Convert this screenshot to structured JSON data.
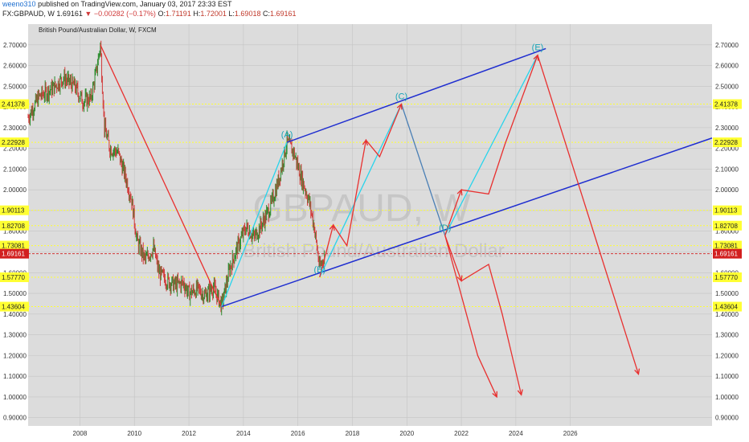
{
  "header": {
    "user": "weeno310",
    "published": "published on TradingView.com, January 03, 2017 23:33 EST",
    "symbol": "FX:GBPAUD, W",
    "last": "1.69161",
    "change": "−0.00282 (−0.17%)",
    "o_label": "O:",
    "o_value": "1.71191",
    "h_label": "H:",
    "h_value": "1.72001",
    "l_label": "L:",
    "l_value": "1.69018",
    "c_label": "C:",
    "c_value": "1.69161"
  },
  "chart_title": "British Pound/Australian Dollar, W, FXCM",
  "watermark": {
    "symbol": "GBPAUD, W",
    "name": "British Pound/Australian Dollar"
  },
  "colors": {
    "plot_bg": "#dcdcdc",
    "green": "#2e8b2e",
    "red_candle": "#d23a3a",
    "projection": "#e8302f",
    "channel": "#1f2ed0",
    "cyan": "#27d4ec",
    "level": "#ffff33",
    "label_bg": "#ffff33",
    "current_bg": "#d21f1f",
    "wave_label": "#18a5b8"
  },
  "chart_data": {
    "type": "line",
    "title": "British Pound/Australian Dollar, W, FXCM",
    "x_ticks": [
      2008,
      2010,
      2012,
      2014,
      2016,
      2018,
      2020,
      2022,
      2024,
      2026
    ],
    "y_ticks": [
      0.9,
      1.0,
      1.1,
      1.2,
      1.3,
      1.4,
      1.5,
      1.6,
      1.7,
      1.8,
      1.9,
      2.0,
      2.1,
      2.2,
      2.3,
      2.4,
      2.5,
      2.6,
      2.7
    ],
    "y_tick_labels": [
      "0.90000",
      "1.00000",
      "1.10000",
      "1.20000",
      "1.30000",
      "1.40000",
      "1.50000",
      "1.60000",
      "1.70000",
      "1.80000",
      "1.90000",
      "2.00000",
      "2.10000",
      "2.20000",
      "2.30000",
      "2.40000",
      "2.50000",
      "2.60000",
      "2.70000"
    ],
    "ylim": [
      0.86,
      2.8
    ],
    "xlim": [
      2006.1,
      2031.2
    ],
    "price_series": [
      [
        2006.1,
        2.35
      ],
      [
        2006.5,
        2.45
      ],
      [
        2007.0,
        2.49
      ],
      [
        2007.4,
        2.54
      ],
      [
        2007.8,
        2.5
      ],
      [
        2008.1,
        2.43
      ],
      [
        2008.4,
        2.44
      ],
      [
        2008.6,
        2.57
      ],
      [
        2008.75,
        2.7
      ],
      [
        2008.9,
        2.3
      ],
      [
        2009.1,
        2.2
      ],
      [
        2009.4,
        2.18
      ],
      [
        2009.7,
        2.05
      ],
      [
        2009.9,
        1.95
      ],
      [
        2010.1,
        1.75
      ],
      [
        2010.4,
        1.66
      ],
      [
        2010.7,
        1.72
      ],
      [
        2010.9,
        1.6
      ],
      [
        2011.2,
        1.56
      ],
      [
        2011.5,
        1.54
      ],
      [
        2011.8,
        1.55
      ],
      [
        2012.0,
        1.5
      ],
      [
        2012.3,
        1.52
      ],
      [
        2012.6,
        1.49
      ],
      [
        2012.9,
        1.53
      ],
      [
        2013.2,
        1.44
      ],
      [
        2013.5,
        1.62
      ],
      [
        2013.8,
        1.73
      ],
      [
        2014.1,
        1.82
      ],
      [
        2014.4,
        1.77
      ],
      [
        2014.7,
        1.84
      ],
      [
        2015.0,
        1.92
      ],
      [
        2015.3,
        2.05
      ],
      [
        2015.6,
        2.23
      ],
      [
        2015.85,
        2.18
      ],
      [
        2016.1,
        2.07
      ],
      [
        2016.4,
        1.95
      ],
      [
        2016.6,
        1.82
      ],
      [
        2016.8,
        1.62
      ],
      [
        2017.0,
        1.69
      ]
    ],
    "horizontal_levels": [
      {
        "value": 2.41378,
        "label": "2.41378"
      },
      {
        "value": 2.22928,
        "label": "2.22928"
      },
      {
        "value": 1.90113,
        "label": "1.90113"
      },
      {
        "value": 1.82708,
        "label": "1.82708"
      },
      {
        "value": 1.73081,
        "label": "1.73081"
      },
      {
        "value": 1.5777,
        "label": "1.57770"
      },
      {
        "value": 1.43604,
        "label": "1.43604"
      }
    ],
    "current_price": {
      "value": 1.69161,
      "label": "1.69161"
    },
    "channel_lines": [
      {
        "from": [
          2013.2,
          1.436
        ],
        "to": [
          2031.2,
          2.25
        ]
      },
      {
        "from": [
          2015.6,
          2.229
        ],
        "to": [
          2025.1,
          2.682
        ]
      }
    ],
    "wave_labels": [
      {
        "text": "(A)",
        "x": 2015.6,
        "y": 2.229
      },
      {
        "text": "(B)",
        "x": 2016.8,
        "y": 1.578
      },
      {
        "text": "(C)",
        "x": 2019.8,
        "y": 2.414
      },
      {
        "text": "(D)",
        "x": 2021.4,
        "y": 1.78
      },
      {
        "text": "(E)",
        "x": 2024.8,
        "y": 2.65
      }
    ],
    "drawn_paths": {
      "red_decline": [
        [
          2008.75,
          2.7
        ],
        [
          2013.2,
          1.436
        ]
      ],
      "cyan_a": [
        [
          2013.2,
          1.436
        ],
        [
          2015.6,
          2.229
        ]
      ],
      "cyan_c": [
        [
          2016.8,
          1.578
        ],
        [
          2019.8,
          2.414
        ]
      ],
      "cyan_e": [
        [
          2021.4,
          1.78
        ],
        [
          2024.8,
          2.65
        ]
      ],
      "cd_leg": [
        [
          2019.8,
          2.414
        ],
        [
          2021.4,
          1.78
        ]
      ],
      "proj_up_1": [
        [
          2016.8,
          1.578
        ],
        [
          2017.3,
          1.83
        ],
        [
          2017.8,
          1.73
        ],
        [
          2018.5,
          2.24
        ],
        [
          2019.0,
          2.16
        ],
        [
          2019.8,
          2.414
        ]
      ],
      "proj_up_2": [
        [
          2021.4,
          1.78
        ],
        [
          2022.0,
          2.0
        ],
        [
          2023.0,
          1.98
        ],
        [
          2023.6,
          2.22
        ],
        [
          2024.8,
          2.65
        ]
      ],
      "proj_down_e": [
        [
          2024.8,
          2.65
        ],
        [
          2028.5,
          1.11
        ]
      ],
      "proj_down_d1": [
        [
          2021.4,
          1.78
        ],
        [
          2022.0,
          1.56
        ],
        [
          2023.0,
          1.64
        ],
        [
          2023.5,
          1.4
        ],
        [
          2024.2,
          1.01
        ]
      ],
      "proj_down_d2": [
        [
          2021.4,
          1.78
        ],
        [
          2022.6,
          1.2
        ],
        [
          2023.3,
          1.0
        ]
      ]
    }
  }
}
